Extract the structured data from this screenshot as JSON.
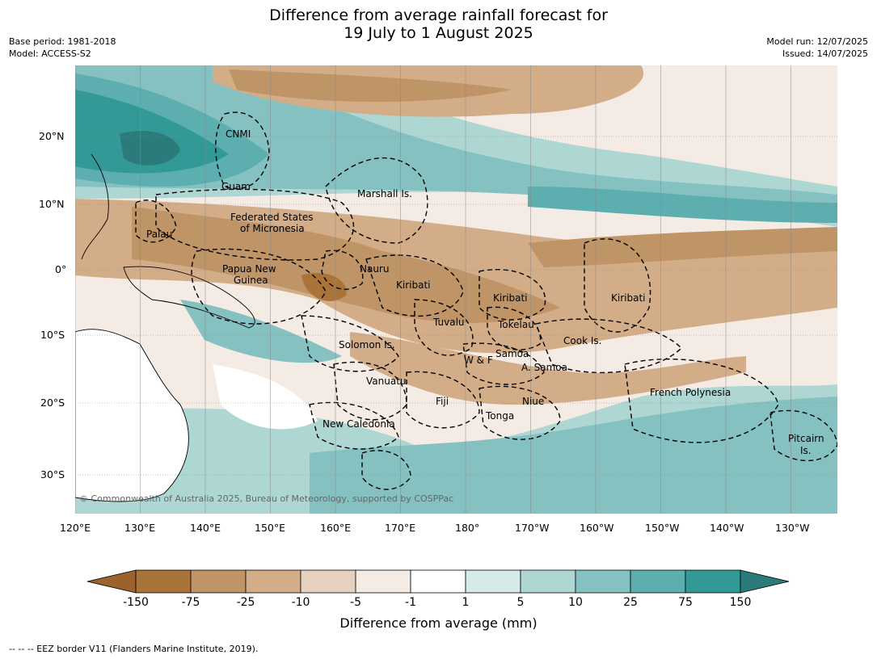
{
  "title": {
    "line1": "Difference from average rainfall forecast for",
    "line2": "19 July to 1 August 2025"
  },
  "meta": {
    "base_period": "Base period: 1981-2018",
    "model": "Model: ACCESS-S2",
    "model_run": "Model run: 12/07/2025",
    "issued": "Issued: 14/07/2025"
  },
  "map": {
    "lat_labels": [
      "20°N",
      "10°N",
      "0°",
      "10°S",
      "20°S",
      "30°S"
    ],
    "lon_labels": [
      "120°E",
      "130°E",
      "140°E",
      "150°E",
      "160°E",
      "170°E",
      "180°",
      "170°W",
      "160°W",
      "150°W",
      "140°W",
      "130°W"
    ],
    "places": [
      {
        "id": "cnmi",
        "text": "CNMI"
      },
      {
        "id": "guam",
        "text": "Guam"
      },
      {
        "id": "marshall",
        "text": "Marshall Is."
      },
      {
        "id": "fsm1",
        "text": "Federated States"
      },
      {
        "id": "fsm2",
        "text": "of Micronesia"
      },
      {
        "id": "palau",
        "text": "Palau"
      },
      {
        "id": "png1",
        "text": "Papua New"
      },
      {
        "id": "png2",
        "text": "Guinea"
      },
      {
        "id": "nauru",
        "text": "Nauru"
      },
      {
        "id": "kiribati1",
        "text": "Kiribati"
      },
      {
        "id": "kiribati2",
        "text": "Kiribati"
      },
      {
        "id": "kiribati3",
        "text": "Kiribati"
      },
      {
        "id": "tuvalu",
        "text": "Tuvalu"
      },
      {
        "id": "tokelau",
        "text": "Tokelau"
      },
      {
        "id": "cook",
        "text": "Cook Is."
      },
      {
        "id": "solomon",
        "text": "Solomon Is."
      },
      {
        "id": "samoa",
        "text": "Samoa"
      },
      {
        "id": "wf",
        "text": "W & F"
      },
      {
        "id": "asamoa",
        "text": "A. Samoa"
      },
      {
        "id": "vanuatu",
        "text": "Vanuatu"
      },
      {
        "id": "fiji",
        "text": "Fiji"
      },
      {
        "id": "niue",
        "text": "Niue"
      },
      {
        "id": "tonga",
        "text": "Tonga"
      },
      {
        "id": "newcal",
        "text": "New Caledonia"
      },
      {
        "id": "frpoly",
        "text": "French Polynesia"
      },
      {
        "id": "pitcairn1",
        "text": "Pitcairn"
      },
      {
        "id": "pitcairn2",
        "text": "Is."
      }
    ],
    "copyright": "© Commonwealth of Australia 2025, Bureau of Meteorology, supported by COSPPac"
  },
  "colorbar": {
    "ticks": [
      "-150",
      "-75",
      "-25",
      "-10",
      "-5",
      "-1",
      "1",
      "5",
      "10",
      "25",
      "75",
      "150"
    ],
    "colors": [
      "#9c622c",
      "#a9733a",
      "#bf9467",
      "#d2ad88",
      "#e6d1bf",
      "#f4ebe5",
      "#ffffff",
      "#d6eae8",
      "#aed7d4",
      "#85c1c0",
      "#5daeae",
      "#329997",
      "#2a7b79"
    ],
    "label": "Difference from average (mm)"
  },
  "footnote": "--  --  -- EEZ border V11 (Flanders Marine Institute, 2019)."
}
